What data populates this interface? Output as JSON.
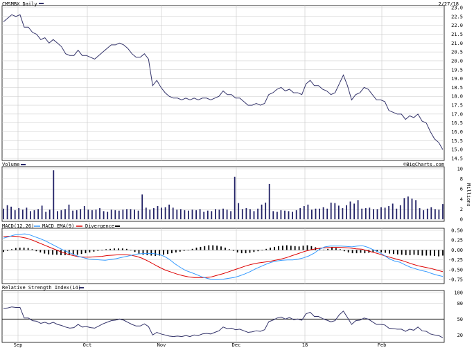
{
  "header": {
    "symbol_title": "CMSMBX Daily",
    "date_label": "2/27/18",
    "watermark": "©BigCharts.com"
  },
  "colors": {
    "price_line": "#33336a",
    "volume_bar": "#222266",
    "macd_line": "#3399ff",
    "ema_line": "#dd0000",
    "divergence": "#000000",
    "grid": "#c8c8c8"
  },
  "panels": {
    "volume": {
      "label": "Volume",
      "unit": "Millions"
    },
    "macd": {
      "label": "MACD(12,26)",
      "ema_label": "MACD EMA(9)",
      "div_label": "Divergence"
    },
    "rsi": {
      "label": "Relative Strength Index(14)"
    }
  },
  "chart_data": [
    {
      "type": "line",
      "title": "CMSMBX Daily",
      "x_ticks": [
        "Sep",
        "Oct",
        "Nov",
        "Dec",
        "18",
        "Feb"
      ],
      "y_ticks": [
        "23.0",
        "22.5",
        "22.0",
        "21.5",
        "21.0",
        "20.5",
        "20.0",
        "19.5",
        "19.0",
        "18.5",
        "18.0",
        "17.5",
        "17.0",
        "16.5",
        "16.0",
        "15.5",
        "15.0",
        "14.5"
      ],
      "ylim": [
        14.5,
        23.0
      ],
      "series": [
        {
          "values": [
            22.2,
            22.4,
            22.6,
            22.5,
            22.6,
            21.9,
            21.9,
            21.6,
            21.5,
            21.2,
            21.3,
            21.0,
            21.2,
            21.0,
            20.8,
            20.4,
            20.3,
            20.3,
            20.6,
            20.3,
            20.3,
            20.2,
            20.1,
            20.3,
            20.5,
            20.7,
            20.9,
            20.9,
            21.0,
            20.9,
            20.7,
            20.4,
            20.2,
            20.2,
            20.4,
            20.1,
            18.6,
            18.9,
            18.5,
            18.2,
            18.0,
            17.9,
            17.9,
            17.8,
            17.9,
            17.8,
            17.9,
            17.8,
            17.9,
            17.9,
            17.8,
            17.9,
            18.0,
            18.3,
            18.1,
            18.1,
            17.9,
            17.9,
            17.7,
            17.5,
            17.5,
            17.6,
            17.5,
            17.6,
            18.1,
            18.2,
            18.4,
            18.5,
            18.3,
            18.4,
            18.2,
            18.2,
            18.1,
            18.7,
            18.9,
            18.6,
            18.6,
            18.4,
            18.3,
            18.1,
            18.2,
            18.7,
            19.2,
            18.6,
            17.8,
            18.1,
            18.2,
            18.5,
            18.4,
            18.1,
            17.8,
            17.8,
            17.7,
            17.2,
            17.1,
            17.0,
            17.0,
            16.7,
            16.9,
            16.8,
            17.0,
            16.6,
            16.5,
            16.0,
            15.6,
            15.4,
            15.0
          ]
        }
      ]
    },
    {
      "type": "bar",
      "title": "Volume",
      "y_ticks": [
        "10",
        "8",
        "6",
        "4",
        "2",
        "0"
      ],
      "ylim": [
        0,
        10
      ],
      "ylabel": "Millions",
      "values": [
        2.1,
        2.8,
        2.5,
        1.8,
        2.2,
        1.9,
        2.3,
        1.6,
        1.8,
        2.0,
        2.7,
        1.5,
        1.9,
        9.7,
        1.6,
        1.8,
        2.0,
        2.9,
        1.7,
        1.8,
        2.0,
        2.6,
        1.9,
        1.8,
        1.9,
        2.2,
        1.6,
        1.5,
        1.9,
        1.8,
        1.7,
        1.9,
        2.0,
        2.0,
        1.9,
        1.7,
        4.9,
        2.3,
        1.9,
        2.2,
        2.6,
        2.3,
        2.4,
        2.9,
        2.3,
        1.9,
        2.0,
        1.8,
        1.7,
        1.9,
        1.8,
        2.0,
        1.5,
        1.7,
        1.6,
        2.0,
        1.9,
        2.1,
        1.9,
        1.6,
        8.4,
        3.2,
        2.0,
        2.2,
        2.0,
        1.6,
        2.1,
        2.9,
        3.3,
        7.0,
        1.6,
        1.5,
        1.8,
        1.7,
        1.6,
        1.5,
        1.8,
        2.2,
        2.6,
        2.9,
        1.9,
        2.1,
        2.1,
        2.4,
        2.1,
        3.3,
        3.2,
        2.7,
        2.2,
        2.8,
        3.5,
        3.1,
        3.8,
        2.1,
        2.2,
        2.3,
        2.0,
        2.0,
        2.4,
        2.3,
        2.6,
        3.1,
        2.1,
        2.8,
        4.2,
        4.5,
        4.1,
        3.8,
        2.2,
        1.8,
        2.1,
        2.4,
        2.0,
        1.9,
        3.0
      ]
    },
    {
      "type": "line",
      "title": "MACD(12,26)",
      "y_ticks": [
        "0.50",
        "0.25",
        "0.00",
        "-0.25",
        "-0.50",
        "-0.75"
      ],
      "ylim": [
        -0.8,
        0.5
      ],
      "series": [
        {
          "name": "MACD(12,26)",
          "values": [
            0.3,
            0.34,
            0.38,
            0.4,
            0.41,
            0.38,
            0.33,
            0.28,
            0.22,
            0.15,
            0.08,
            0.01,
            -0.05,
            -0.11,
            -0.16,
            -0.2,
            -0.23,
            -0.24,
            -0.25,
            -0.26,
            -0.24,
            -0.22,
            -0.19,
            -0.16,
            -0.13,
            -0.1,
            -0.09,
            -0.09,
            -0.09,
            -0.11,
            -0.16,
            -0.24,
            -0.35,
            -0.44,
            -0.52,
            -0.57,
            -0.62,
            -0.68,
            -0.72,
            -0.75,
            -0.75,
            -0.74,
            -0.72,
            -0.7,
            -0.66,
            -0.61,
            -0.55,
            -0.48,
            -0.42,
            -0.36,
            -0.31,
            -0.28,
            -0.26,
            -0.25,
            -0.25,
            -0.23,
            -0.2,
            -0.15,
            -0.08,
            0.02,
            0.08,
            0.1,
            0.1,
            0.1,
            0.09,
            0.08,
            0.1,
            0.11,
            0.07,
            0.01,
            -0.05,
            -0.13,
            -0.22,
            -0.28,
            -0.31,
            -0.38,
            -0.44,
            -0.48,
            -0.52,
            -0.55,
            -0.6,
            -0.64,
            -0.67
          ]
        },
        {
          "name": "MACD EMA(9)",
          "values": [
            0.34,
            0.35,
            0.35,
            0.33,
            0.3,
            0.25,
            0.19,
            0.13,
            0.07,
            0.01,
            -0.05,
            -0.1,
            -0.14,
            -0.17,
            -0.18,
            -0.18,
            -0.17,
            -0.16,
            -0.14,
            -0.13,
            -0.12,
            -0.12,
            -0.13,
            -0.16,
            -0.21,
            -0.28,
            -0.36,
            -0.44,
            -0.51,
            -0.56,
            -0.61,
            -0.65,
            -0.68,
            -0.7,
            -0.7,
            -0.7,
            -0.68,
            -0.64,
            -0.6,
            -0.55,
            -0.5,
            -0.45,
            -0.4,
            -0.36,
            -0.33,
            -0.31,
            -0.29,
            -0.26,
            -0.23,
            -0.19,
            -0.14,
            -0.09,
            -0.04,
            0.0,
            0.03,
            0.05,
            0.06,
            0.07,
            0.07,
            0.06,
            0.05,
            0.03,
            0.02,
            -0.02,
            -0.06,
            -0.1,
            -0.15,
            -0.19,
            -0.23,
            -0.27,
            -0.32,
            -0.37,
            -0.41,
            -0.44,
            -0.47,
            -0.51,
            -0.55
          ]
        },
        {
          "name": "Divergence",
          "values": [
            -0.05,
            -0.02,
            0.02,
            0.05,
            0.06,
            0.06,
            0.05,
            0.02,
            -0.03,
            -0.06,
            -0.09,
            -0.11,
            -0.12,
            -0.12,
            -0.13,
            -0.13,
            -0.13,
            -0.12,
            -0.12,
            -0.1,
            -0.08,
            -0.06,
            -0.04,
            -0.02,
            0.0,
            0.02,
            0.03,
            0.04,
            0.04,
            0.04,
            0.03,
            0.0,
            -0.05,
            -0.09,
            -0.12,
            -0.13,
            -0.14,
            -0.15,
            -0.14,
            -0.12,
            -0.1,
            -0.08,
            -0.06,
            -0.04,
            -0.02,
            0.0,
            0.03,
            0.06,
            0.08,
            0.1,
            0.12,
            0.12,
            0.11,
            0.09,
            0.06,
            0.02,
            -0.02,
            -0.06,
            -0.08,
            -0.08,
            -0.07,
            -0.05,
            -0.03,
            -0.01,
            0.03,
            0.06,
            0.08,
            0.1,
            0.11,
            0.12,
            0.11,
            0.1,
            0.09,
            0.11,
            0.12,
            0.1,
            0.07,
            0.04,
            0.01,
            0.03,
            0.06,
            0.05,
            0.02,
            -0.03,
            -0.06,
            -0.08,
            -0.08,
            -0.07,
            -0.08,
            -0.07,
            -0.06,
            -0.05,
            -0.06,
            -0.07,
            -0.09,
            -0.1,
            -0.11,
            -0.12,
            -0.13,
            -0.13,
            -0.12,
            -0.13,
            -0.14,
            -0.14,
            -0.14,
            -0.15,
            -0.16,
            -0.14
          ]
        }
      ]
    },
    {
      "type": "line",
      "title": "Relative Strength Index(14)",
      "y_ticks": [
        "100",
        "80",
        "50",
        "20"
      ],
      "ylim": [
        10,
        100
      ],
      "reference_line": 50,
      "series": [
        {
          "values": [
            70,
            71,
            73,
            72,
            72,
            52,
            52,
            47,
            46,
            42,
            44,
            41,
            44,
            40,
            38,
            35,
            33,
            34,
            40,
            35,
            36,
            34,
            33,
            37,
            41,
            44,
            47,
            48,
            50,
            48,
            44,
            40,
            37,
            37,
            41,
            36,
            20,
            25,
            22,
            20,
            18,
            17,
            18,
            17,
            19,
            17,
            20,
            19,
            22,
            23,
            22,
            25,
            28,
            35,
            32,
            33,
            30,
            31,
            28,
            25,
            26,
            28,
            27,
            30,
            45,
            48,
            52,
            54,
            50,
            53,
            49,
            50,
            48,
            60,
            63,
            55,
            55,
            51,
            48,
            45,
            47,
            58,
            65,
            53,
            40,
            47,
            48,
            52,
            50,
            45,
            40,
            40,
            39,
            33,
            32,
            31,
            31,
            27,
            31,
            29,
            35,
            28,
            27,
            22,
            20,
            19,
            15
          ]
        }
      ]
    }
  ]
}
